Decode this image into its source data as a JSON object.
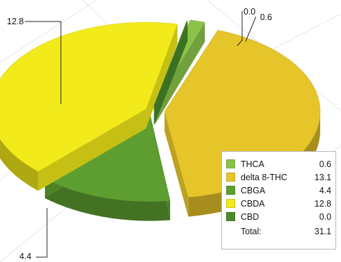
{
  "colors": {
    "thca": "#8bc34a",
    "delta8": "#e6c52a",
    "cbga": "#5e9e30",
    "cbda": "#f2ea1a",
    "cbd": "#4a8a2a",
    "background_lines": "#e6e6e6"
  },
  "chart_data": {
    "type": "pie",
    "title": "",
    "slices": [
      {
        "label": "THCA",
        "value": 0.6
      },
      {
        "label": "delta 8-THC",
        "value": 13.1
      },
      {
        "label": "CBGA",
        "value": 4.4
      },
      {
        "label": "CBDA",
        "value": 12.8
      },
      {
        "label": "CBD",
        "value": 0.0
      }
    ],
    "total_label": "Total:",
    "total_value": "31.1",
    "callout_labels": [
      "0.0",
      "0.6",
      "12.8",
      "4.4"
    ],
    "legend_position": "bottom-right",
    "style": "3d-exploded"
  },
  "legend": {
    "items": [
      {
        "label": "THCA",
        "value": "0.6"
      },
      {
        "label": "delta 8-THC",
        "value": "13.1"
      },
      {
        "label": "CBGA",
        "value": "4.4"
      },
      {
        "label": "CBDA",
        "value": "12.8"
      },
      {
        "label": "CBD",
        "value": "0.0"
      }
    ],
    "total_label": "Total:",
    "total_value": "31.1"
  }
}
